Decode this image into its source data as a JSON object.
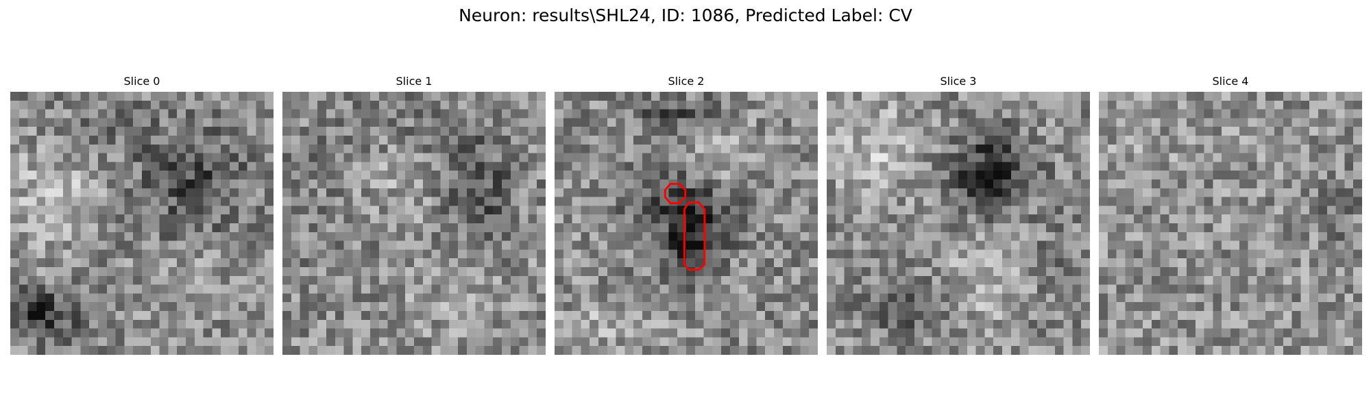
{
  "figure": {
    "title": "Neuron: results\\SHL24, ID: 1086, Predicted Label: CV"
  },
  "panels": [
    {
      "title": "Slice 0",
      "blobs": [],
      "contours": []
    },
    {
      "title": "Slice 1",
      "blobs": [],
      "contours": []
    },
    {
      "title": "Slice 2",
      "blobs": [],
      "contours": []
    },
    {
      "title": "Slice 3",
      "blobs": [],
      "contours": []
    },
    {
      "title": "Slice 4",
      "blobs": [],
      "contours": []
    }
  ],
  "colors": {
    "contour": "#ff0000",
    "background": "#ffffff"
  }
}
